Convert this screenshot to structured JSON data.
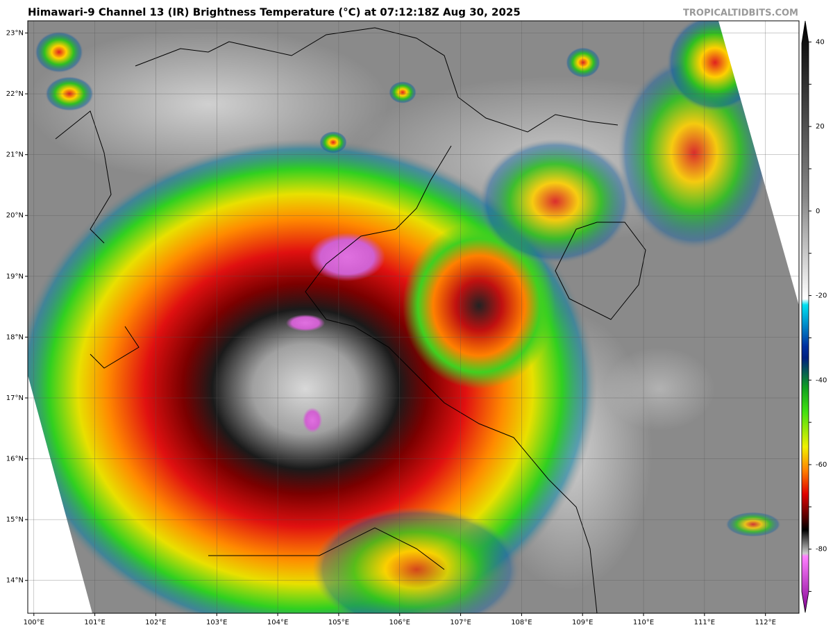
{
  "header": {
    "title": "Himawari-9 Channel 13 (IR) Brightness Temperature (°C) at 07:12:18Z Aug 30, 2025",
    "credit": "TROPICALTIDBITS.COM"
  },
  "map": {
    "lonlim": [
      99.9,
      112.55
    ],
    "latlim": [
      13.46,
      23.2
    ],
    "lonticks": [
      {
        "value": 100,
        "label": "100°E"
      },
      {
        "value": 101,
        "label": "101°E"
      },
      {
        "value": 102,
        "label": "102°E"
      },
      {
        "value": 103,
        "label": "103°E"
      },
      {
        "value": 104,
        "label": "104°E"
      },
      {
        "value": 105,
        "label": "105°E"
      },
      {
        "value": 106,
        "label": "106°E"
      },
      {
        "value": 107,
        "label": "107°E"
      },
      {
        "value": 108,
        "label": "108°E"
      },
      {
        "value": 109,
        "label": "109°E"
      },
      {
        "value": 110,
        "label": "110°E"
      },
      {
        "value": 111,
        "label": "111°E"
      },
      {
        "value": 112,
        "label": "112°E"
      }
    ],
    "latticks": [
      {
        "value": 14,
        "label": "14°N"
      },
      {
        "value": 15,
        "label": "15°N"
      },
      {
        "value": 16,
        "label": "16°N"
      },
      {
        "value": 17,
        "label": "17°N"
      },
      {
        "value": 18,
        "label": "18°N"
      },
      {
        "value": 19,
        "label": "19°N"
      },
      {
        "value": 20,
        "label": "20°N"
      },
      {
        "value": 21,
        "label": "21°N"
      },
      {
        "value": 22,
        "label": "22°N"
      },
      {
        "value": 23,
        "label": "23°N"
      }
    ]
  },
  "colorbar": {
    "lim": [
      -95,
      45
    ],
    "ticks": [
      40,
      30,
      20,
      10,
      0,
      -10,
      -20,
      -30,
      -40,
      -50,
      -60,
      -70,
      -80,
      -90
    ]
  }
}
